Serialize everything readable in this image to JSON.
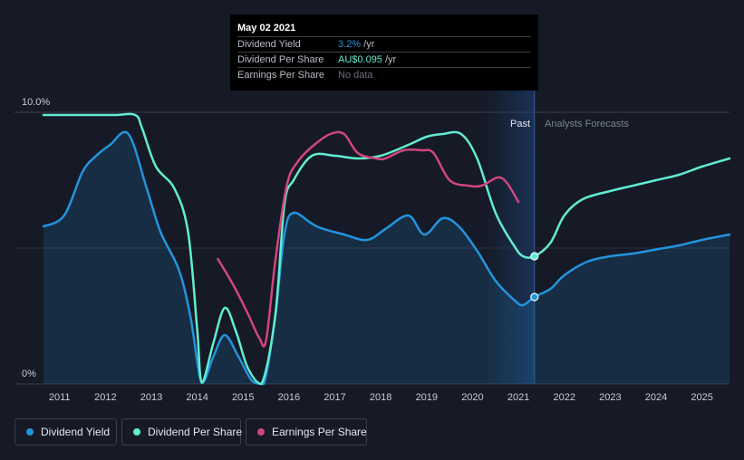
{
  "colors": {
    "background": "#151a26",
    "dividend_yield": "#2394df",
    "dividend_per_share": "#62ecd0",
    "earnings_per_share": "#d1467e",
    "grid": "#3a3f4a",
    "axis_text": "#c8ccd4",
    "past_band": "#1b3a66"
  },
  "tooltip": {
    "date": "May 02 2021",
    "rows": [
      {
        "label": "Dividend Yield",
        "value": "3.2%",
        "unit": " /yr",
        "value_color": "#2394df"
      },
      {
        "label": "Dividend Per Share",
        "value": "AU$0.095",
        "unit": " /yr",
        "value_color": "#62ecd0"
      },
      {
        "label": "Earnings Per Share",
        "value": "No data",
        "unit": "",
        "value_color": "#6b7080"
      }
    ]
  },
  "legend": {
    "items": [
      {
        "label": "Dividend Yield",
        "color": "#2394df"
      },
      {
        "label": "Dividend Per Share",
        "color": "#62ecd0"
      },
      {
        "label": "Earnings Per Share",
        "color": "#d1467e"
      }
    ]
  },
  "chart_data": {
    "type": "line",
    "title": "",
    "xlabel": "",
    "ylabel": "",
    "x_ticks": [
      "2011",
      "2012",
      "2013",
      "2014",
      "2015",
      "2016",
      "2017",
      "2018",
      "2019",
      "2020",
      "2021",
      "2022",
      "2023",
      "2024",
      "2025"
    ],
    "y_ticks": [
      "0%",
      "10.0%"
    ],
    "ylim": [
      0,
      10
    ],
    "xlim": [
      2010.65,
      2025.6
    ],
    "past_label": "Past",
    "forecast_label": "Analysts Forecasts",
    "past_band": [
      2020.33,
      2021.35
    ],
    "highlight_x": 2021.35,
    "grid": true,
    "legend_position": "bottom-left",
    "series": [
      {
        "name": "Dividend Yield",
        "color": "#2394df",
        "fill": true,
        "points": [
          [
            2010.65,
            5.8
          ],
          [
            2011.1,
            6.2
          ],
          [
            2011.5,
            7.8
          ],
          [
            2011.8,
            8.4
          ],
          [
            2012.1,
            8.8
          ],
          [
            2012.5,
            9.2
          ],
          [
            2012.9,
            7.2
          ],
          [
            2013.2,
            5.6
          ],
          [
            2013.6,
            4.2
          ],
          [
            2013.85,
            2.5
          ],
          [
            2014.1,
            0.05
          ],
          [
            2014.35,
            1.0
          ],
          [
            2014.6,
            1.8
          ],
          [
            2014.9,
            1.0
          ],
          [
            2015.2,
            0.1
          ],
          [
            2015.45,
            0.0
          ],
          [
            2015.7,
            2.5
          ],
          [
            2015.9,
            5.5
          ],
          [
            2016.1,
            6.3
          ],
          [
            2016.6,
            5.8
          ],
          [
            2017.2,
            5.5
          ],
          [
            2017.7,
            5.3
          ],
          [
            2018.1,
            5.7
          ],
          [
            2018.6,
            6.2
          ],
          [
            2018.95,
            5.5
          ],
          [
            2019.35,
            6.1
          ],
          [
            2019.7,
            5.8
          ],
          [
            2020.1,
            4.9
          ],
          [
            2020.5,
            3.8
          ],
          [
            2020.9,
            3.1
          ],
          [
            2021.1,
            2.9
          ],
          [
            2021.35,
            3.2
          ],
          [
            2021.7,
            3.5
          ],
          [
            2022.0,
            4.0
          ],
          [
            2022.5,
            4.5
          ],
          [
            2023.0,
            4.7
          ],
          [
            2023.5,
            4.8
          ],
          [
            2024.0,
            4.95
          ],
          [
            2024.5,
            5.1
          ],
          [
            2025.0,
            5.3
          ],
          [
            2025.6,
            5.5
          ]
        ]
      },
      {
        "name": "Dividend Per Share",
        "color": "#62ecd0",
        "fill": false,
        "points": [
          [
            2010.65,
            9.9
          ],
          [
            2011.5,
            9.9
          ],
          [
            2012.2,
            9.9
          ],
          [
            2012.65,
            9.9
          ],
          [
            2012.8,
            9.4
          ],
          [
            2013.1,
            8.0
          ],
          [
            2013.5,
            7.2
          ],
          [
            2013.8,
            5.6
          ],
          [
            2014.0,
            2.0
          ],
          [
            2014.1,
            0.05
          ],
          [
            2014.35,
            1.5
          ],
          [
            2014.6,
            2.8
          ],
          [
            2014.85,
            1.9
          ],
          [
            2015.1,
            0.6
          ],
          [
            2015.4,
            0.0
          ],
          [
            2015.7,
            2.5
          ],
          [
            2015.9,
            6.6
          ],
          [
            2016.1,
            7.5
          ],
          [
            2016.5,
            8.4
          ],
          [
            2017.0,
            8.4
          ],
          [
            2017.5,
            8.3
          ],
          [
            2018.0,
            8.4
          ],
          [
            2018.6,
            8.8
          ],
          [
            2019.0,
            9.1
          ],
          [
            2019.35,
            9.2
          ],
          [
            2019.75,
            9.2
          ],
          [
            2020.1,
            8.3
          ],
          [
            2020.5,
            6.3
          ],
          [
            2020.9,
            5.1
          ],
          [
            2021.1,
            4.7
          ],
          [
            2021.35,
            4.7
          ],
          [
            2021.7,
            5.2
          ],
          [
            2022.0,
            6.2
          ],
          [
            2022.4,
            6.8
          ],
          [
            2023.0,
            7.1
          ],
          [
            2023.5,
            7.3
          ],
          [
            2024.0,
            7.5
          ],
          [
            2024.5,
            7.7
          ],
          [
            2025.0,
            8.0
          ],
          [
            2025.6,
            8.3
          ]
        ]
      },
      {
        "name": "Earnings Per Share",
        "color": "#d1467e",
        "fill": false,
        "points": [
          [
            2014.45,
            4.6
          ],
          [
            2014.8,
            3.6
          ],
          [
            2015.1,
            2.6
          ],
          [
            2015.35,
            1.7
          ],
          [
            2015.5,
            1.6
          ],
          [
            2015.7,
            4.5
          ],
          [
            2015.95,
            7.3
          ],
          [
            2016.2,
            8.2
          ],
          [
            2016.55,
            8.8
          ],
          [
            2016.9,
            9.2
          ],
          [
            2017.2,
            9.2
          ],
          [
            2017.5,
            8.5
          ],
          [
            2017.9,
            8.3
          ],
          [
            2018.1,
            8.3
          ],
          [
            2018.5,
            8.6
          ],
          [
            2018.9,
            8.6
          ],
          [
            2019.15,
            8.5
          ],
          [
            2019.5,
            7.5
          ],
          [
            2019.9,
            7.3
          ],
          [
            2020.2,
            7.3
          ],
          [
            2020.55,
            7.6
          ],
          [
            2020.75,
            7.4
          ],
          [
            2021.0,
            6.7
          ]
        ]
      }
    ],
    "markers": [
      {
        "series": "Dividend Per Share",
        "x": 2021.35,
        "y": 4.7
      },
      {
        "series": "Dividend Yield",
        "x": 2021.35,
        "y": 3.2
      }
    ]
  }
}
